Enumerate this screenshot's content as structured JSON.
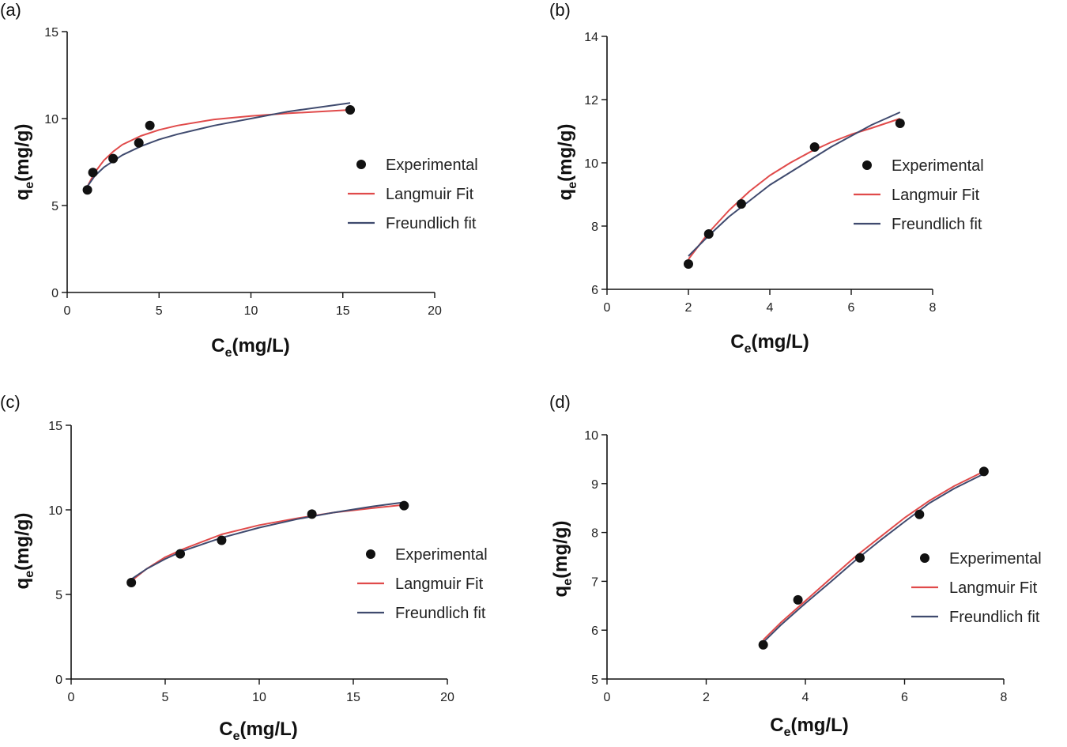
{
  "colors": {
    "langmuir": "#e04a4a",
    "freundlich": "#3f4a6e",
    "experimental": "#111111"
  },
  "chart_data": [
    {
      "type": "scatter",
      "panel_label": "(a)",
      "xlabel_main": "C",
      "xlabel_sub": "e",
      "xlabel_unit": "(mg/L)",
      "ylabel_main": "q",
      "ylabel_sub": "e",
      "ylabel_unit": "(mg/g)",
      "xlim": [
        0,
        20
      ],
      "ylim": [
        0,
        15
      ],
      "xticks": [
        0,
        5,
        10,
        15,
        20
      ],
      "yticks": [
        0,
        5,
        10,
        15
      ],
      "xtick_labels": [
        "0",
        "5",
        "10",
        "15",
        "20"
      ],
      "ytick_labels": [
        "0",
        "5",
        "10",
        "15"
      ],
      "legend": [
        "Experimental",
        "Langmuir Fit",
        "Freundlich fit"
      ],
      "series": [
        {
          "name": "Experimental",
          "kind": "points",
          "x": [
            1.1,
            1.4,
            2.5,
            3.9,
            4.5,
            15.4
          ],
          "y": [
            5.9,
            6.9,
            7.7,
            8.6,
            9.6,
            10.5
          ]
        },
        {
          "name": "Langmuir Fit",
          "kind": "line",
          "x": [
            1.1,
            1.5,
            2.0,
            2.5,
            3.0,
            4.0,
            5.0,
            6.0,
            8.0,
            10.0,
            12.0,
            15.4
          ],
          "y": [
            6.1,
            6.9,
            7.6,
            8.1,
            8.5,
            9.0,
            9.35,
            9.6,
            9.95,
            10.15,
            10.3,
            10.5
          ]
        },
        {
          "name": "Freundlich fit",
          "kind": "line",
          "x": [
            1.1,
            1.5,
            2.0,
            3.0,
            4.0,
            5.0,
            6.0,
            8.0,
            10.0,
            12.0,
            15.4
          ],
          "y": [
            6.1,
            6.7,
            7.2,
            7.9,
            8.4,
            8.8,
            9.1,
            9.6,
            10.0,
            10.4,
            10.9
          ]
        }
      ]
    },
    {
      "type": "scatter",
      "panel_label": "(b)",
      "xlabel_main": "C",
      "xlabel_sub": "e",
      "xlabel_unit": "(mg/L)",
      "ylabel_main": "q",
      "ylabel_sub": "e",
      "ylabel_unit": "(mg/g)",
      "xlim": [
        0,
        8
      ],
      "ylim": [
        6,
        14
      ],
      "xticks": [
        0,
        2,
        4,
        6,
        8
      ],
      "yticks": [
        6,
        8,
        10,
        12,
        14
      ],
      "xtick_labels": [
        "0",
        "2",
        "4",
        "6",
        "8"
      ],
      "ytick_labels": [
        "6",
        "8",
        "10",
        "12",
        "14"
      ],
      "legend": [
        "Experimental",
        "Langmuir Fit",
        "Freundlich fit"
      ],
      "series": [
        {
          "name": "Experimental",
          "kind": "points",
          "x": [
            2.0,
            2.5,
            3.3,
            5.1,
            7.2
          ],
          "y": [
            6.8,
            7.75,
            8.7,
            10.5,
            11.25
          ]
        },
        {
          "name": "Langmuir Fit",
          "kind": "line",
          "x": [
            2.0,
            2.5,
            3.0,
            3.5,
            4.0,
            4.5,
            5.0,
            5.5,
            6.0,
            6.5,
            7.2
          ],
          "y": [
            6.95,
            7.8,
            8.5,
            9.1,
            9.6,
            10.0,
            10.35,
            10.65,
            10.9,
            11.1,
            11.4
          ]
        },
        {
          "name": "Freundlich fit",
          "kind": "line",
          "x": [
            2.0,
            2.5,
            3.0,
            3.5,
            4.0,
            4.5,
            5.0,
            5.5,
            6.0,
            6.5,
            7.2
          ],
          "y": [
            7.05,
            7.7,
            8.3,
            8.8,
            9.3,
            9.7,
            10.1,
            10.5,
            10.85,
            11.2,
            11.6
          ]
        }
      ]
    },
    {
      "type": "scatter",
      "panel_label": "(c)",
      "xlabel_main": "C",
      "xlabel_sub": "e",
      "xlabel_unit": "(mg/L)",
      "ylabel_main": "q",
      "ylabel_sub": "e",
      "ylabel_unit": "(mg/g)",
      "xlim": [
        0,
        20
      ],
      "ylim": [
        0,
        15
      ],
      "xticks": [
        0,
        5,
        10,
        15,
        20
      ],
      "yticks": [
        0,
        5,
        10,
        15
      ],
      "xtick_labels": [
        "0",
        "5",
        "10",
        "15",
        "20"
      ],
      "ytick_labels": [
        "0",
        "5",
        "10",
        "15"
      ],
      "legend": [
        "Experimental",
        "Langmuir Fit",
        "Freundlich fit"
      ],
      "series": [
        {
          "name": "Experimental",
          "kind": "points",
          "x": [
            3.2,
            5.8,
            8.0,
            12.8,
            17.7
          ],
          "y": [
            5.7,
            7.4,
            8.2,
            9.75,
            10.25
          ]
        },
        {
          "name": "Langmuir Fit",
          "kind": "line",
          "x": [
            3.2,
            4.0,
            5.0,
            6.0,
            8.0,
            10.0,
            12.0,
            14.0,
            16.0,
            17.7
          ],
          "y": [
            5.8,
            6.5,
            7.2,
            7.7,
            8.55,
            9.1,
            9.5,
            9.85,
            10.1,
            10.3
          ]
        },
        {
          "name": "Freundlich fit",
          "kind": "line",
          "x": [
            3.2,
            4.0,
            5.0,
            6.0,
            8.0,
            10.0,
            12.0,
            14.0,
            16.0,
            17.7
          ],
          "y": [
            5.9,
            6.5,
            7.1,
            7.6,
            8.35,
            8.95,
            9.45,
            9.85,
            10.2,
            10.45
          ]
        }
      ]
    },
    {
      "type": "scatter",
      "panel_label": "(d)",
      "xlabel_main": "C",
      "xlabel_sub": "e",
      "xlabel_unit": "(mg/L)",
      "ylabel_main": "q",
      "ylabel_sub": "e",
      "ylabel_unit": "(mg/g)",
      "xlim": [
        0,
        8
      ],
      "ylim": [
        5,
        10
      ],
      "xticks": [
        0,
        2,
        4,
        6,
        8
      ],
      "yticks": [
        5,
        6,
        7,
        8,
        9,
        10
      ],
      "xtick_labels": [
        "0",
        "2",
        "4",
        "6",
        "8"
      ],
      "ytick_labels": [
        "5",
        "6",
        "7",
        "8",
        "9",
        "10"
      ],
      "legend": [
        "Experimental",
        "Langmuir Fit",
        "Freundlich fit"
      ],
      "series": [
        {
          "name": "Experimental",
          "kind": "points",
          "x": [
            3.15,
            3.85,
            5.1,
            6.3,
            7.6
          ],
          "y": [
            5.7,
            6.62,
            7.48,
            8.37,
            9.25
          ]
        },
        {
          "name": "Langmuir Fit",
          "kind": "line",
          "x": [
            3.15,
            3.5,
            4.0,
            4.5,
            5.0,
            5.5,
            6.0,
            6.5,
            7.0,
            7.6
          ],
          "y": [
            5.8,
            6.15,
            6.6,
            7.05,
            7.5,
            7.9,
            8.3,
            8.65,
            8.95,
            9.25
          ]
        },
        {
          "name": "Freundlich fit",
          "kind": "line",
          "x": [
            3.15,
            3.5,
            4.0,
            4.5,
            5.0,
            5.5,
            6.0,
            6.5,
            7.0,
            7.6
          ],
          "y": [
            5.75,
            6.1,
            6.55,
            6.98,
            7.42,
            7.83,
            8.22,
            8.6,
            8.9,
            9.2
          ]
        }
      ]
    }
  ]
}
